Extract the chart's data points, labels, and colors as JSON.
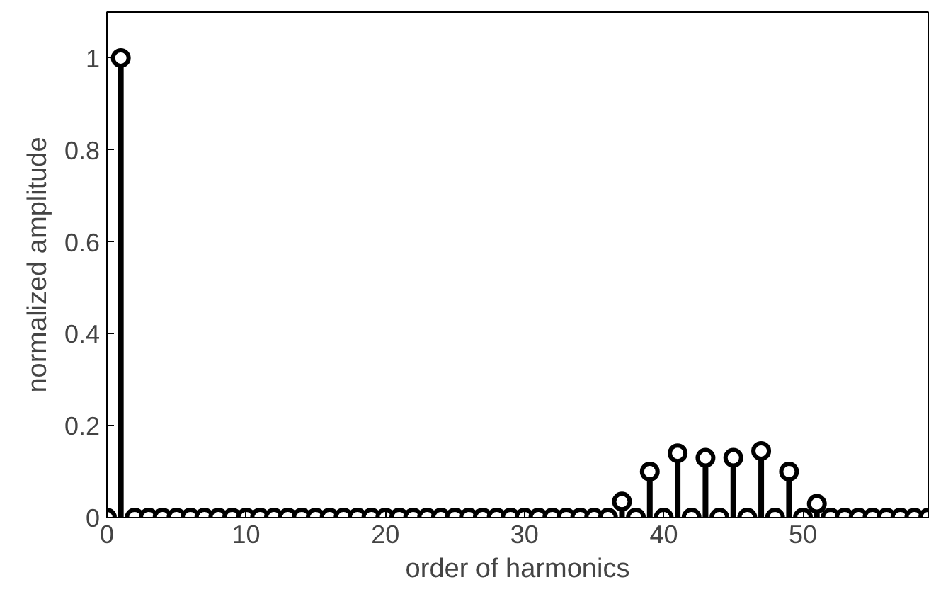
{
  "chart_data": {
    "type": "lollipop",
    "xlabel": "order of harmonics",
    "ylabel": "normalized amplitude",
    "x": [
      0,
      1,
      2,
      3,
      4,
      5,
      6,
      7,
      8,
      9,
      10,
      11,
      12,
      13,
      14,
      15,
      16,
      17,
      18,
      19,
      20,
      21,
      22,
      23,
      24,
      25,
      26,
      27,
      28,
      29,
      30,
      31,
      32,
      33,
      34,
      35,
      36,
      37,
      38,
      39,
      40,
      41,
      42,
      43,
      44,
      45,
      46,
      47,
      48,
      49,
      50,
      51,
      52,
      53,
      54,
      55,
      56,
      57,
      58,
      59
    ],
    "series": [
      {
        "color": "#000000",
        "values": [
          0,
          1,
          0,
          0,
          0,
          0,
          0,
          0,
          0,
          0,
          0,
          0,
          0,
          0,
          0,
          0,
          0,
          0,
          0,
          0,
          0,
          0,
          0,
          0,
          0,
          0,
          0,
          0,
          0,
          0,
          0,
          0,
          0,
          0,
          0,
          0,
          0,
          0.035,
          0,
          0.1,
          0,
          0.14,
          0,
          0.13,
          0,
          0.13,
          0,
          0.145,
          0,
          0.1,
          0,
          0.03,
          0,
          0,
          0,
          0,
          0,
          0,
          0,
          0
        ]
      }
    ],
    "xlim": [
      0,
      59
    ],
    "ylim": [
      0,
      1.1
    ],
    "xticks": [
      0,
      10,
      20,
      30,
      40,
      50
    ],
    "yticks": [
      0,
      0.2,
      0.4,
      0.6,
      0.8,
      1
    ],
    "marker": "circle",
    "grid": false
  }
}
